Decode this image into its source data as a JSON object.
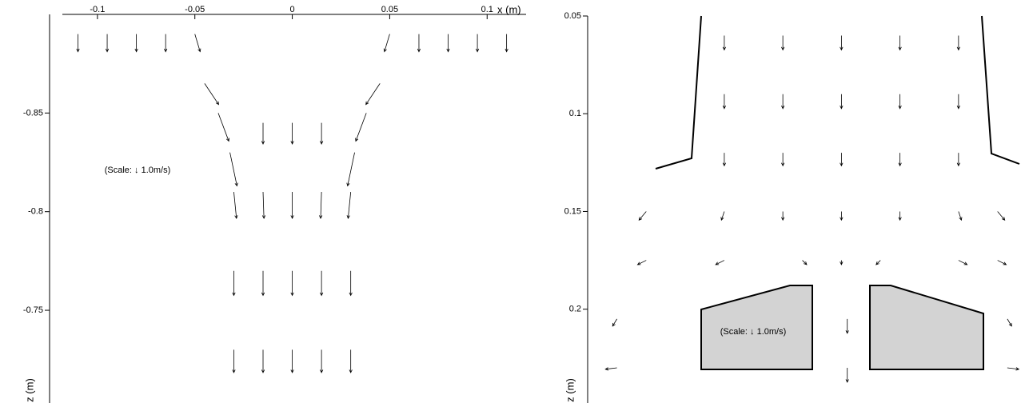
{
  "chart_data": [
    {
      "type": "quiver",
      "xlabel": "x (m)",
      "ylabel": "z (m)",
      "annotation": "(Scale: ↓ 1.0m/s)",
      "xlim": [
        -0.118,
        0.12
      ],
      "xticks": [
        -0.1,
        -0.05,
        0,
        0.05,
        0.1
      ],
      "ylim": [
        -0.9,
        -0.703
      ],
      "yticks": [
        -0.85,
        -0.8,
        -0.75
      ],
      "x": [
        -0.11,
        -0.095,
        -0.08,
        -0.065,
        -0.05,
        0.05,
        0.065,
        0.08,
        0.095,
        0.11,
        -0.045,
        -0.038,
        -0.032,
        0.045,
        0.038,
        0.032,
        -0.015,
        0,
        0.015,
        -0.03,
        -0.015,
        0,
        0.015,
        0.03,
        -0.03,
        -0.015,
        0,
        0.015,
        0.03,
        -0.03,
        -0.015,
        0,
        0.015,
        0.03
      ],
      "y": [
        -0.89,
        -0.89,
        -0.89,
        -0.89,
        -0.89,
        -0.89,
        -0.89,
        -0.89,
        -0.89,
        -0.89,
        -0.865,
        -0.85,
        -0.83,
        -0.865,
        -0.85,
        -0.83,
        -0.845,
        -0.845,
        -0.845,
        -0.81,
        -0.81,
        -0.81,
        -0.81,
        -0.81,
        -0.77,
        -0.77,
        -0.77,
        -0.77,
        -0.77,
        -0.73,
        -0.73,
        -0.73,
        -0.73,
        -0.73
      ],
      "u": [
        0,
        0,
        0,
        0,
        0.3,
        -0.3,
        0,
        0,
        0,
        0,
        0.8,
        0.6,
        0.4,
        -0.8,
        -0.6,
        -0.4,
        0,
        0,
        0,
        0.15,
        0.05,
        0,
        -0.05,
        -0.15,
        0,
        0,
        0,
        0,
        0,
        0,
        0,
        0,
        0,
        0
      ],
      "v": [
        1,
        1,
        1,
        1,
        1,
        1,
        1,
        1,
        1,
        1,
        1.2,
        1.6,
        1.9,
        1.2,
        1.6,
        1.9,
        1.2,
        1.2,
        1.2,
        1.5,
        1.5,
        1.5,
        1.5,
        1.5,
        1.4,
        1.4,
        1.4,
        1.4,
        1.4,
        1.3,
        1.3,
        1.3,
        1.3,
        1.3
      ]
    },
    {
      "type": "quiver",
      "ylabel": "z (m)",
      "annotation": "(Scale: ↓ 1.0m/s)",
      "xlim": [
        -0.13,
        0.092
      ],
      "ylim": [
        0.05,
        0.248
      ],
      "yticks": [
        0.05,
        0.1,
        0.15,
        0.2
      ],
      "x": [
        -0.06,
        -0.03,
        0,
        0.03,
        0.06,
        -0.06,
        -0.03,
        0,
        0.03,
        0.06,
        -0.06,
        -0.03,
        0,
        0.03,
        0.06,
        -0.1,
        -0.06,
        -0.03,
        0,
        0.03,
        0.06,
        0.08,
        -0.1,
        -0.06,
        -0.02,
        0,
        0.02,
        0.06,
        0.08,
        -0.115,
        0.003,
        0.085,
        -0.115,
        0.003,
        0.085
      ],
      "y": [
        0.06,
        0.06,
        0.06,
        0.06,
        0.06,
        0.09,
        0.09,
        0.09,
        0.09,
        0.09,
        0.12,
        0.12,
        0.12,
        0.12,
        0.12,
        0.15,
        0.15,
        0.15,
        0.15,
        0.15,
        0.15,
        0.15,
        0.175,
        0.175,
        0.175,
        0.175,
        0.175,
        0.175,
        0.175,
        0.205,
        0.205,
        0.205,
        0.23,
        0.23,
        0.23
      ],
      "u": [
        0,
        0,
        0,
        0,
        0,
        0,
        0,
        0,
        0,
        0,
        0,
        0,
        0,
        0,
        0,
        -0.5,
        -0.2,
        0,
        0,
        0,
        0.2,
        0.5,
        -0.6,
        -0.6,
        0.3,
        0,
        -0.3,
        0.6,
        0.6,
        -0.3,
        0,
        0.3,
        -0.8,
        0,
        0.8
      ],
      "v": [
        1,
        1,
        1,
        1,
        1,
        1,
        1,
        1,
        1,
        1,
        0.9,
        0.9,
        0.9,
        0.9,
        0.9,
        0.6,
        0.6,
        0.6,
        0.6,
        0.6,
        0.6,
        0.6,
        0.3,
        0.3,
        0.3,
        0.3,
        0.3,
        0.3,
        0.3,
        0.5,
        1,
        0.5,
        0.1,
        1,
        0.1
      ]
    }
  ]
}
